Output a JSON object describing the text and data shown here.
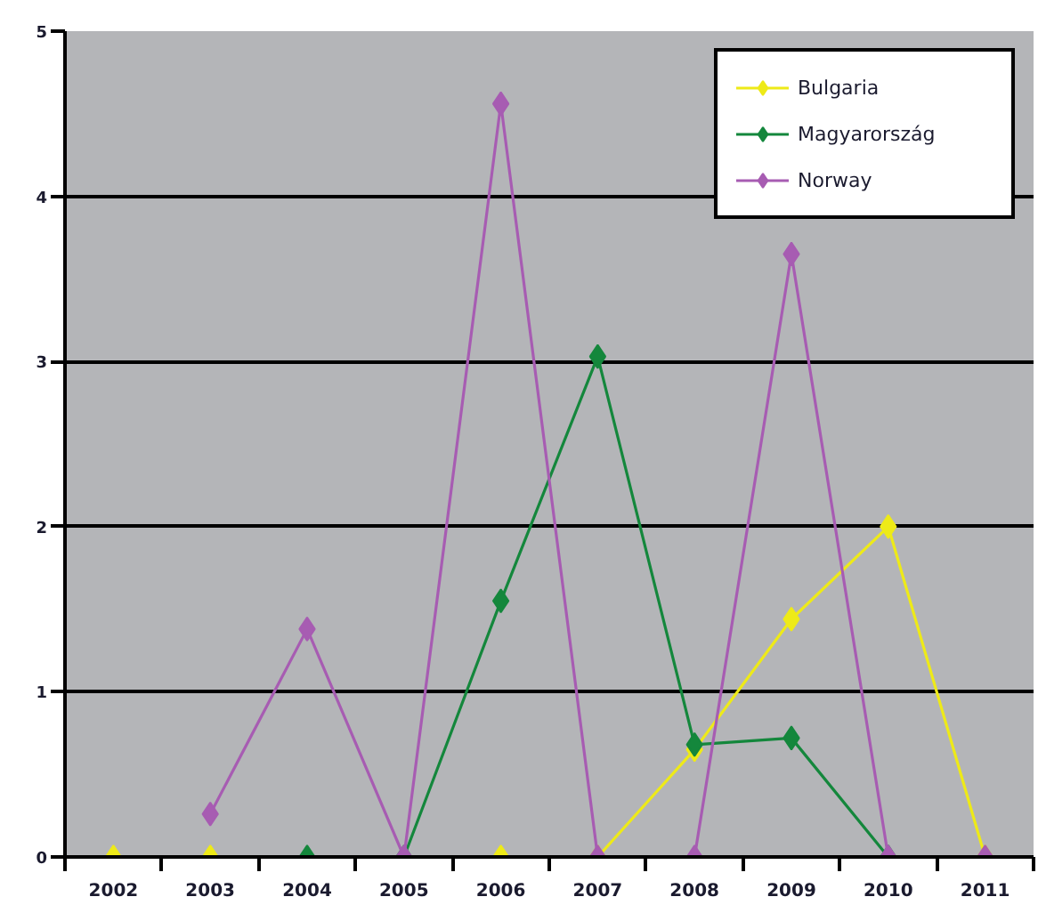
{
  "chart_data": {
    "type": "line",
    "categories": [
      "2002",
      "2003",
      "2004",
      "2005",
      "2006",
      "2007",
      "2008",
      "2009",
      "2010",
      "2011"
    ],
    "series": [
      {
        "name": "Bulgaria",
        "color": "#eeea18",
        "values": [
          0,
          0,
          null,
          null,
          0,
          0,
          0.65,
          1.44,
          2.0,
          0
        ]
      },
      {
        "name": "Magyarország",
        "color": "#14873c",
        "values": [
          null,
          null,
          0,
          0,
          1.55,
          3.03,
          0.68,
          0.72,
          0,
          null
        ]
      },
      {
        "name": "Norway",
        "color": "#a75cb2",
        "values": [
          null,
          0.26,
          1.38,
          0,
          4.56,
          0,
          0,
          3.65,
          0,
          0
        ]
      }
    ],
    "ylim": [
      0,
      5
    ],
    "yticks": [
      0,
      1,
      2,
      3,
      4,
      5
    ],
    "grid": "y",
    "legend": "top right",
    "marker": "diamond",
    "line_style": "solid"
  }
}
